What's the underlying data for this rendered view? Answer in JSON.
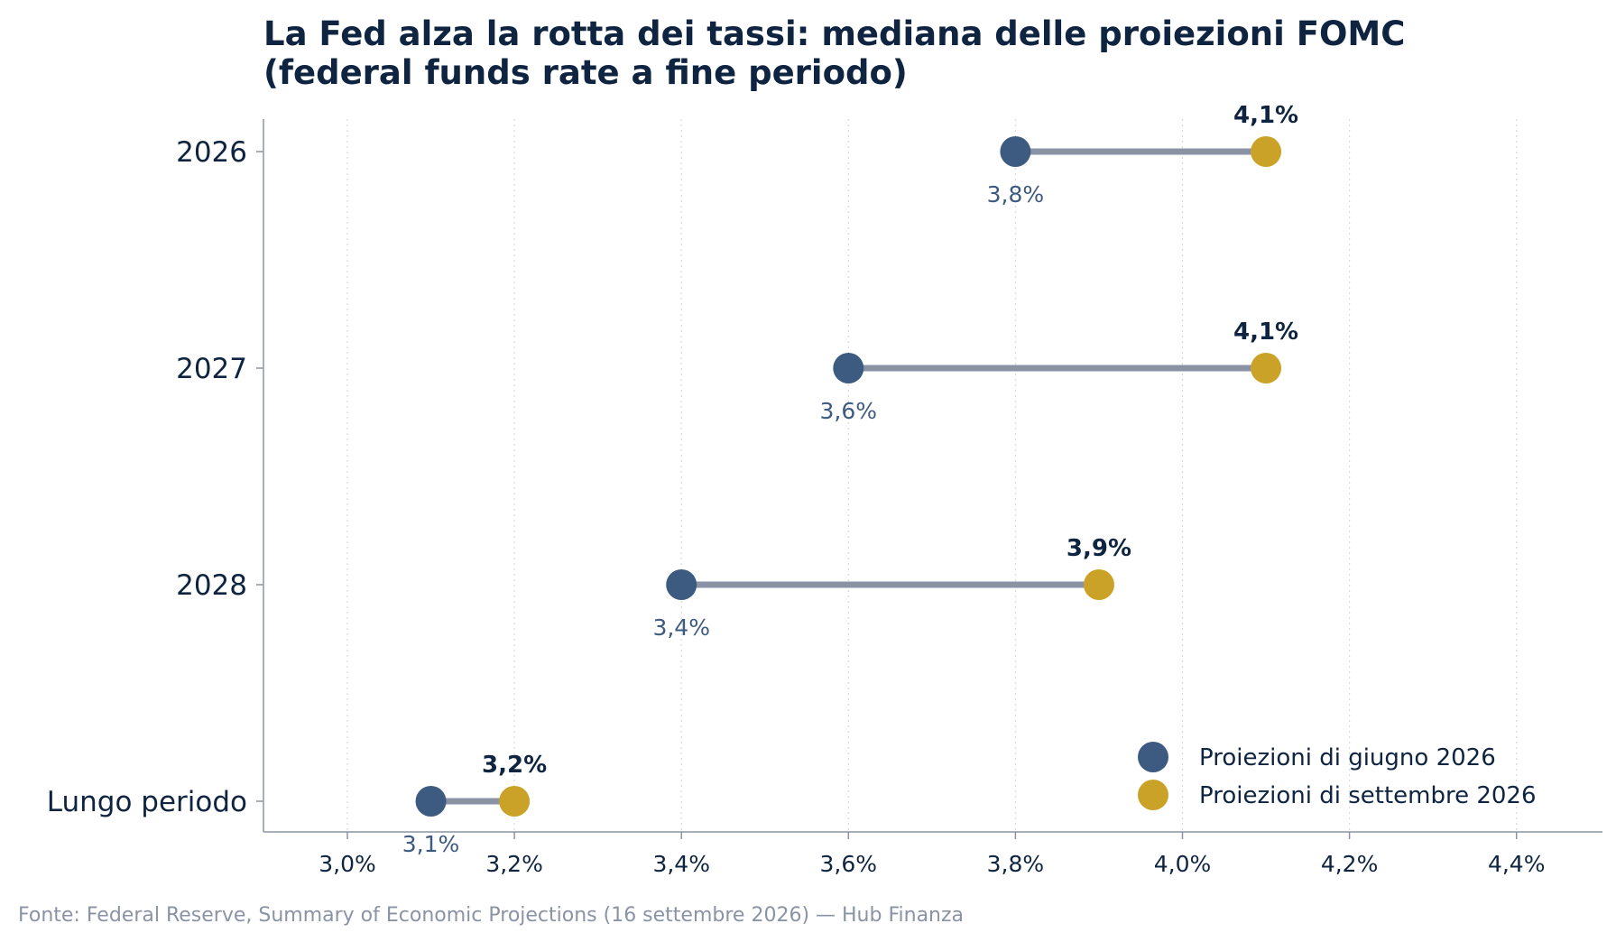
{
  "colors": {
    "june": "#3d5a80",
    "september": "#c9a227",
    "connector": "#8a93a6",
    "text": "#0e2440",
    "source": "#8a93a6",
    "axis": "#8a93a6",
    "grid": "#d9d9d9"
  },
  "chart_data": {
    "type": "dumbbell",
    "title_line1": "La Fed alza la rotta dei tassi: mediana delle proiezioni FOMC",
    "title_line2": "(federal funds rate a fine periodo)",
    "categories": [
      "2026",
      "2027",
      "2028",
      "Lungo periodo"
    ],
    "series": [
      {
        "name": "Proiezioni di giugno 2026",
        "values": [
          3.8,
          3.6,
          3.4,
          3.1
        ],
        "labels": [
          "3,8%",
          "3,6%",
          "3,4%",
          "3,1%"
        ]
      },
      {
        "name": "Proiezioni di settembre 2026",
        "values": [
          4.1,
          4.1,
          3.9,
          3.2
        ],
        "labels": [
          "4,1%",
          "4,1%",
          "3,9%",
          "3,2%"
        ]
      }
    ],
    "xlim": [
      2.9,
      4.5
    ],
    "xticks": [
      3.0,
      3.2,
      3.4,
      3.6,
      3.8,
      4.0,
      4.2,
      4.4
    ],
    "xtick_labels": [
      "3,0%",
      "3,2%",
      "3,4%",
      "3,6%",
      "3,8%",
      "4,0%",
      "4,2%",
      "4,4%"
    ],
    "grid": "vertical dotted",
    "legend_position": "lower-right"
  },
  "source": "Fonte: Federal Reserve, Summary of Economic Projections (16 settembre 2026) — Hub Finanza"
}
